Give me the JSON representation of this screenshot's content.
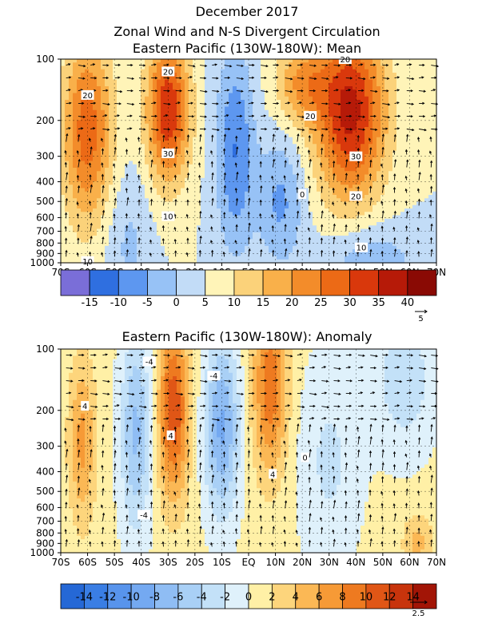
{
  "title": "December 2017",
  "chart_data": [
    {
      "type": "heatmap",
      "title": "Zonal Wind and N-S Divergent Circulation",
      "subtitle": "Eastern Pacific (130W-180W): Mean",
      "x_ticks": [
        "70S",
        "60S",
        "50S",
        "40S",
        "30S",
        "20S",
        "10S",
        "EQ",
        "10N",
        "20N",
        "30N",
        "40N",
        "50N",
        "60N",
        "70N"
      ],
      "y_ticks": [
        "100",
        "200",
        "300",
        "400",
        "500",
        "600",
        "700",
        "800",
        "900",
        "1000"
      ],
      "y_scale": "log",
      "colorbar_levels": [
        -15,
        -10,
        -5,
        0,
        5,
        10,
        15,
        20,
        25,
        30,
        35,
        40
      ],
      "colorbar_labels": [
        "-15",
        "-10",
        "-5",
        "0",
        "5",
        "10",
        "15",
        "20",
        "25",
        "30",
        "35",
        "40"
      ],
      "colorbar_colors": [
        "#7a6ed8",
        "#2f6fe0",
        "#5d97f0",
        "#97c2f6",
        "#c2dcf7",
        "#fff4b8",
        "#fbd27a",
        "#f9b04a",
        "#f38c2a",
        "#ec6a16",
        "#d9380c",
        "#b61a08",
        "#8a0a04"
      ],
      "contour_labels": [
        {
          "text": "20",
          "lat": -60,
          "p": 150
        },
        {
          "text": "20",
          "lat": -30,
          "p": 115
        },
        {
          "text": "30",
          "lat": -30,
          "p": 290
        },
        {
          "text": "10",
          "lat": -30,
          "p": 590
        },
        {
          "text": "10",
          "lat": -60,
          "p": 980
        },
        {
          "text": "20",
          "lat": 36,
          "p": 100
        },
        {
          "text": "20",
          "lat": 23,
          "p": 190
        },
        {
          "text": "30",
          "lat": 40,
          "p": 300
        },
        {
          "text": "0",
          "lat": 20,
          "p": 460
        },
        {
          "text": "20",
          "lat": 40,
          "p": 470
        },
        {
          "text": "10",
          "lat": 42,
          "p": 840
        }
      ],
      "jets": [
        {
          "lat": -60,
          "p": 250,
          "max": 26
        },
        {
          "lat": -30,
          "p": 200,
          "max": 33
        },
        {
          "lat": 38,
          "p": 200,
          "max": 36
        }
      ],
      "vector_reference": "5"
    },
    {
      "type": "heatmap",
      "subtitle": "Eastern Pacific (130W-180W): Anomaly",
      "x_ticks": [
        "70S",
        "60S",
        "50S",
        "40S",
        "30S",
        "20S",
        "10S",
        "EQ",
        "10N",
        "20N",
        "30N",
        "40N",
        "50N",
        "60N",
        "70N"
      ],
      "y_ticks": [
        "100",
        "200",
        "300",
        "400",
        "500",
        "600",
        "700",
        "800",
        "900",
        "1000"
      ],
      "y_scale": "log",
      "colorbar_levels": [
        -14,
        -12,
        -10,
        -8,
        -6,
        -4,
        -2,
        0,
        2,
        4,
        6,
        8,
        10,
        12,
        14
      ],
      "colorbar_labels": [
        "-14",
        "-12",
        "-10",
        "-8",
        "-6",
        "-4",
        "-2",
        "0",
        "2",
        "4",
        "6",
        "8",
        "10",
        "12",
        "14"
      ],
      "colorbar_colors": [
        "#2568d6",
        "#3a7ee4",
        "#5894ec",
        "#74a9f1",
        "#8fbdf4",
        "#a9d0f6",
        "#c3e1f8",
        "#dff1fb",
        "#fff0a6",
        "#fdd57c",
        "#fbb855",
        "#f69a36",
        "#ee7a20",
        "#e05616",
        "#c8340c",
        "#a21506"
      ],
      "contour_labels": [
        {
          "text": "-4",
          "lat": -37,
          "p": 115
        },
        {
          "text": "-4",
          "lat": -13,
          "p": 135
        },
        {
          "text": "4",
          "lat": -61,
          "p": 190
        },
        {
          "text": "4",
          "lat": -29,
          "p": 265
        },
        {
          "text": "0",
          "lat": 21,
          "p": 340
        },
        {
          "text": "4",
          "lat": 9,
          "p": 410
        },
        {
          "text": "-4",
          "lat": -39,
          "p": 650
        }
      ],
      "vector_reference": "2.5"
    }
  ]
}
